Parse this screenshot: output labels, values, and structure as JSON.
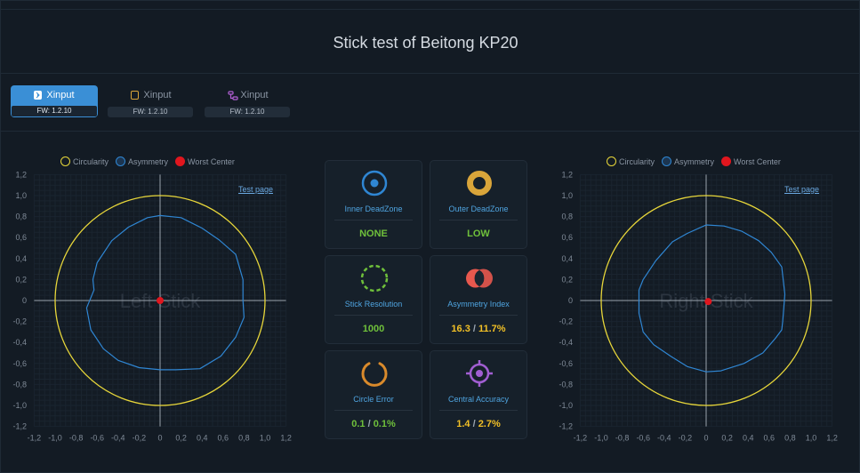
{
  "page": {
    "title": "Stick test of Beitong KP20"
  },
  "tabs": [
    {
      "label": "Xinput",
      "fw": "FW: 1.2.10",
      "active": true,
      "icon": "bluetooth-icon"
    },
    {
      "label": "Xinput",
      "fw": "FW: 1.2.10",
      "active": false,
      "icon": "usb-dongle-icon"
    },
    {
      "label": "Xinput",
      "fw": "FW: 1.2.10",
      "active": false,
      "icon": "wired-cable-icon"
    }
  ],
  "legend": {
    "circularity": "Circularity",
    "asymmetry": "Asymmetry",
    "worst_center": "Worst Center"
  },
  "colors": {
    "circularity": "#e8d73a",
    "asymmetry": "#2f86d3",
    "worst_center": "#e0161e",
    "good": "#6fc03b",
    "warn": "#f2c026"
  },
  "left_stick": {
    "title": "Left Stick",
    "test_link": "Test page",
    "axis_ticks": [
      "-1,2",
      "-1,0",
      "-0,8",
      "-0,6",
      "-0,4",
      "-0,2",
      "0",
      "0,2",
      "0,4",
      "0,6",
      "0,8",
      "1,0",
      "1,2"
    ]
  },
  "right_stick": {
    "title": "Right Stick",
    "test_link": "Test page",
    "axis_ticks": [
      "-1,2",
      "-1,0",
      "-0,8",
      "-0,6",
      "-0,4",
      "-0,2",
      "0",
      "0,2",
      "0,4",
      "0,6",
      "0,8",
      "1,0",
      "1,2"
    ]
  },
  "metrics": {
    "inner_deadzone": {
      "label": "Inner DeadZone",
      "value": "NONE"
    },
    "outer_deadzone": {
      "label": "Outer DeadZone",
      "value": "LOW"
    },
    "stick_resolution": {
      "label": "Stick Resolution",
      "value": "1000"
    },
    "asymmetry_index": {
      "label": "Asymmetry Index",
      "left": "16.3",
      "sep": " / ",
      "right": "11.7%"
    },
    "circle_error": {
      "label": "Circle Error",
      "left": "0.1",
      "sep": " / ",
      "right": "0.1%"
    },
    "central_accuracy": {
      "label": "Central Accuracy",
      "left": "1.4",
      "sep": " / ",
      "right": "2.7%"
    }
  },
  "chart_data": [
    {
      "type": "scatter",
      "title": "Left Stick",
      "xlim": [
        -1.2,
        1.2
      ],
      "ylim": [
        -1.2,
        1.2
      ],
      "grid": true,
      "series": [
        {
          "name": "Circularity",
          "shape": "circle",
          "radius": 1.0
        },
        {
          "name": "Asymmetry",
          "points": [
            [
              0.0,
              0.81
            ],
            [
              0.2,
              0.79
            ],
            [
              0.4,
              0.69
            ],
            [
              0.56,
              0.58
            ],
            [
              0.72,
              0.44
            ],
            [
              0.79,
              0.2
            ],
            [
              0.79,
              0.0
            ],
            [
              0.8,
              -0.16
            ],
            [
              0.72,
              -0.35
            ],
            [
              0.58,
              -0.53
            ],
            [
              0.38,
              -0.65
            ],
            [
              0.15,
              -0.66
            ],
            [
              0.0,
              -0.66
            ],
            [
              -0.2,
              -0.64
            ],
            [
              -0.4,
              -0.57
            ],
            [
              -0.54,
              -0.46
            ],
            [
              -0.66,
              -0.28
            ],
            [
              -0.7,
              -0.07
            ],
            [
              -0.63,
              0.1
            ],
            [
              -0.64,
              0.2
            ],
            [
              -0.6,
              0.36
            ],
            [
              -0.46,
              0.57
            ],
            [
              -0.3,
              0.7
            ],
            [
              -0.12,
              0.79
            ],
            [
              0.0,
              0.81
            ]
          ]
        },
        {
          "name": "Worst Center",
          "points": [
            [
              0.0,
              0.0
            ]
          ]
        }
      ]
    },
    {
      "type": "scatter",
      "title": "Right Stick",
      "xlim": [
        -1.2,
        1.2
      ],
      "ylim": [
        -1.2,
        1.2
      ],
      "grid": true,
      "series": [
        {
          "name": "Circularity",
          "shape": "circle",
          "radius": 1.0
        },
        {
          "name": "Asymmetry",
          "points": [
            [
              0.0,
              0.72
            ],
            [
              0.17,
              0.71
            ],
            [
              0.34,
              0.66
            ],
            [
              0.5,
              0.57
            ],
            [
              0.62,
              0.46
            ],
            [
              0.72,
              0.32
            ],
            [
              0.75,
              0.06
            ],
            [
              0.73,
              -0.2
            ],
            [
              0.72,
              -0.28
            ],
            [
              0.66,
              -0.36
            ],
            [
              0.54,
              -0.5
            ],
            [
              0.36,
              -0.6
            ],
            [
              0.14,
              -0.67
            ],
            [
              0.0,
              -0.68
            ],
            [
              -0.18,
              -0.63
            ],
            [
              -0.34,
              -0.53
            ],
            [
              -0.5,
              -0.42
            ],
            [
              -0.6,
              -0.3
            ],
            [
              -0.64,
              -0.12
            ],
            [
              -0.64,
              0.1
            ],
            [
              -0.6,
              0.2
            ],
            [
              -0.48,
              0.38
            ],
            [
              -0.32,
              0.56
            ],
            [
              -0.18,
              0.64
            ],
            [
              0.0,
              0.72
            ]
          ]
        },
        {
          "name": "Worst Center",
          "points": [
            [
              0.02,
              -0.01
            ]
          ]
        }
      ]
    }
  ]
}
